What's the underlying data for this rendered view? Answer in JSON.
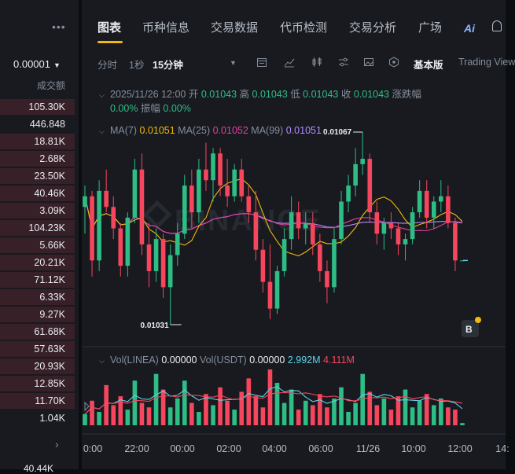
{
  "left_panel": {
    "menu_icon": "more-dots-icon",
    "selector_value": "0.00001",
    "column_header": "成交额",
    "volumes": [
      "105.30K",
      "446.848",
      "18.81K",
      "2.68K",
      "23.50K",
      "40.46K",
      "3.09K",
      "104.23K",
      "5.66K",
      "20.21K",
      "71.12K",
      "6.33K",
      "9.27K",
      "61.68K",
      "57.63K",
      "20.93K",
      "12.85K",
      "11.70K",
      "1.04K"
    ],
    "volume_bar_fill": [
      0.95,
      0.0,
      0.95,
      0.95,
      0.95,
      0.95,
      0.95,
      0.95,
      0.95,
      0.95,
      0.95,
      0.95,
      0.95,
      0.95,
      0.95,
      0.95,
      0.95,
      0.95,
      0.0
    ],
    "bottom_value": "40.44K"
  },
  "tabs": [
    "图表",
    "币种信息",
    "交易数据",
    "代币检测",
    "交易分析",
    "广场"
  ],
  "active_tab": "图表",
  "ai_label": "Ai",
  "toolbar": {
    "intervals": [
      "分时",
      "1秒",
      "15分钟"
    ],
    "active_interval": "15分钟",
    "tool_icons": [
      "calendar-indicator-icon",
      "line-chart-icon",
      "candlestick-icon",
      "settings-sliders-icon",
      "image-icon",
      "hexagon-icon"
    ],
    "basic_version": "基本版",
    "tradingview": "Trading View"
  },
  "ohlc_info": {
    "date": "2025/11/26 12:00",
    "open_label": "开",
    "open": "0.01043",
    "high_label": "高",
    "high": "0.01043",
    "low_label": "低",
    "low": "0.01043",
    "close_label": "收",
    "close": "0.01043",
    "change_label": "涨跌幅",
    "change": "0.00%",
    "amplitude_label": "振幅",
    "amplitude": "0.00%"
  },
  "ma_info": {
    "ma7_label": "MA(7)",
    "ma7": "0.01051",
    "ma25_label": "MA(25)",
    "ma25": "0.01052",
    "ma99_label": "MA(99)",
    "ma99": "0.01051"
  },
  "annotations": {
    "high": "0.01067",
    "low": "0.01031"
  },
  "watermark": "BINANCE",
  "vol_info": {
    "label1": "Vol(LINEA)",
    "val1": "0.00000",
    "label2": "Vol(USDT)",
    "val2": "0.00000",
    "ma_a": "2.992M",
    "ma_b": "4.111M"
  },
  "time_axis": [
    "0:00",
    "22:00",
    "00:00",
    "02:00",
    "04:00",
    "06:00",
    "11/26",
    "10:00",
    "12:00",
    "14:"
  ],
  "colors": {
    "up": "#2ebd85",
    "down": "#f6465d",
    "ma7": "#f0b90b",
    "ma25": "#e040a0",
    "ma99": "#b58cff",
    "vol_ma_a": "#5fd3e8",
    "vol_ma_b": "#f6465d",
    "accent": "#f0b90b"
  },
  "chart_data": {
    "type": "candlestick",
    "y_high_label": "0.01067",
    "y_low_label": "0.01031",
    "candles": [
      [
        0.01053,
        0.01057,
        0.01048,
        0.01055
      ],
      [
        0.01055,
        0.01056,
        0.0104,
        0.01043
      ],
      [
        0.01043,
        0.01058,
        0.01041,
        0.01056
      ],
      [
        0.01056,
        0.0106,
        0.01052,
        0.01053
      ],
      [
        0.01053,
        0.01055,
        0.01047,
        0.01049
      ],
      [
        0.01049,
        0.0105,
        0.0104,
        0.01042
      ],
      [
        0.01042,
        0.01052,
        0.0104,
        0.01051
      ],
      [
        0.01051,
        0.01062,
        0.0105,
        0.0106
      ],
      [
        0.0106,
        0.01063,
        0.01044,
        0.01046
      ],
      [
        0.01046,
        0.0105,
        0.01038,
        0.01041
      ],
      [
        0.01041,
        0.01049,
        0.01039,
        0.01047
      ],
      [
        0.01047,
        0.01048,
        0.01036,
        0.01038
      ],
      [
        0.01038,
        0.01046,
        0.01031,
        0.01044
      ],
      [
        0.01044,
        0.0105,
        0.01042,
        0.01048
      ],
      [
        0.01048,
        0.01059,
        0.01047,
        0.01057
      ],
      [
        0.01057,
        0.0106,
        0.01049,
        0.01052
      ],
      [
        0.01052,
        0.01062,
        0.0105,
        0.0106
      ],
      [
        0.0106,
        0.01065,
        0.01056,
        0.01058
      ],
      [
        0.01058,
        0.01064,
        0.01054,
        0.01063
      ],
      [
        0.01063,
        0.01064,
        0.01055,
        0.01057
      ],
      [
        0.01057,
        0.01062,
        0.01053,
        0.01055
      ],
      [
        0.01055,
        0.01061,
        0.01054,
        0.0106
      ],
      [
        0.0106,
        0.01062,
        0.01054,
        0.01055
      ],
      [
        0.01055,
        0.01057,
        0.0105,
        0.01052
      ],
      [
        0.01052,
        0.01056,
        0.01043,
        0.01045
      ],
      [
        0.01045,
        0.01047,
        0.01037,
        0.01039
      ],
      [
        0.01039,
        0.01046,
        0.01032,
        0.01034
      ],
      [
        0.01034,
        0.01042,
        0.01033,
        0.01041
      ],
      [
        0.01041,
        0.01049,
        0.0104,
        0.01047
      ],
      [
        0.01047,
        0.01055,
        0.01045,
        0.01052
      ],
      [
        0.01052,
        0.01054,
        0.01047,
        0.01049
      ],
      [
        0.01049,
        0.01052,
        0.01046,
        0.0105
      ],
      [
        0.0105,
        0.01052,
        0.01044,
        0.01046
      ],
      [
        0.01046,
        0.01048,
        0.01039,
        0.01041
      ],
      [
        0.01041,
        0.01043,
        0.01035,
        0.01038
      ],
      [
        0.01038,
        0.01049,
        0.01037,
        0.01047
      ],
      [
        0.01047,
        0.01056,
        0.01046,
        0.01054
      ],
      [
        0.01054,
        0.01059,
        0.01052,
        0.01057
      ],
      [
        0.01057,
        0.01064,
        0.01055,
        0.01061
      ],
      [
        0.01061,
        0.01067,
        0.01059,
        0.01062
      ],
      [
        0.01062,
        0.01063,
        0.0105,
        0.01052
      ],
      [
        0.01052,
        0.01054,
        0.01046,
        0.01048
      ],
      [
        0.01048,
        0.01051,
        0.01045,
        0.0105
      ],
      [
        0.0105,
        0.01052,
        0.01047,
        0.01049
      ],
      [
        0.01049,
        0.0105,
        0.01044,
        0.01046
      ],
      [
        0.01046,
        0.01048,
        0.01043,
        0.01047
      ],
      [
        0.01047,
        0.01053,
        0.01046,
        0.01052
      ],
      [
        0.01052,
        0.01058,
        0.01051,
        0.01056
      ],
      [
        0.01056,
        0.01058,
        0.01049,
        0.01051
      ],
      [
        0.01051,
        0.01055,
        0.01049,
        0.01054
      ],
      [
        0.01054,
        0.01058,
        0.01052,
        0.01055
      ],
      [
        0.01055,
        0.01057,
        0.01049,
        0.0105
      ],
      [
        0.0105,
        0.01051,
        0.01041,
        0.01043
      ],
      [
        0.01043,
        0.01043,
        0.01043,
        0.01043
      ]
    ],
    "volumes": [
      0.5,
      1.1,
      0.6,
      1.8,
      0.9,
      1.3,
      0.7,
      2.0,
      1.0,
      0.8,
      2.3,
      1.6,
      0.8,
      1.2,
      2.0,
      1.0,
      0.6,
      1.4,
      0.9,
      1.7,
      1.1,
      0.7,
      1.5,
      2.1,
      1.3,
      0.8,
      2.5,
      1.9,
      1.0,
      1.6,
      0.7,
      1.1,
      0.9,
      1.4,
      0.8,
      1.2,
      1.7,
      0.6,
      1.0,
      2.3,
      1.5,
      0.9,
      1.2,
      0.7,
      1.3,
      1.6,
      0.8,
      1.1,
      1.4,
      0.9,
      1.2,
      0.8,
      0.7,
      0.1
    ]
  }
}
